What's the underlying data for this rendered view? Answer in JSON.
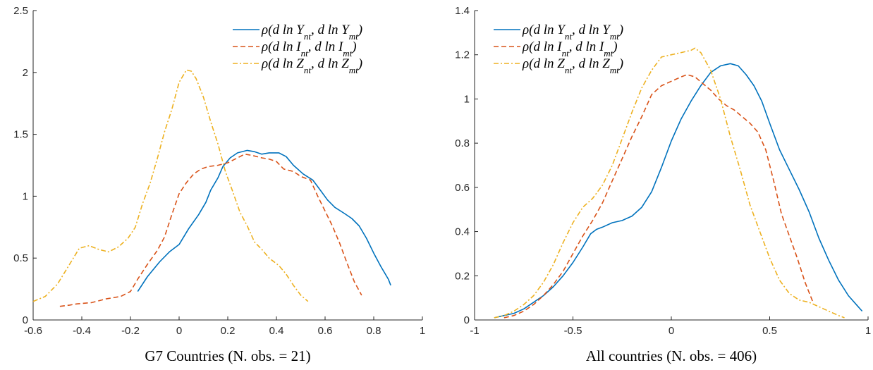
{
  "chart_data": [
    {
      "type": "line",
      "xlabel": "G7 Countries (N. obs. = 21)",
      "ylabel": "",
      "xlim": [
        -0.6,
        1
      ],
      "ylim": [
        0,
        2.5
      ],
      "xticks": [
        "-0.6",
        "-0.4",
        "-0.2",
        "0",
        "0.2",
        "0.4",
        "0.6",
        "0.8",
        "1"
      ],
      "yticks": [
        "0",
        "0.5",
        "1",
        "1.5",
        "2",
        "2.5"
      ],
      "legend_position": "top-right",
      "series": [
        {
          "name": "ρ(d ln Y_nt, d ln Y_mt)",
          "color": "#0072BD",
          "dash": "solid",
          "points": [
            [
              -0.17,
              0.23
            ],
            [
              -0.13,
              0.35
            ],
            [
              -0.08,
              0.47
            ],
            [
              -0.04,
              0.55
            ],
            [
              0.0,
              0.61
            ],
            [
              0.04,
              0.74
            ],
            [
              0.08,
              0.85
            ],
            [
              0.11,
              0.95
            ],
            [
              0.13,
              1.05
            ],
            [
              0.16,
              1.15
            ],
            [
              0.18,
              1.24
            ],
            [
              0.21,
              1.31
            ],
            [
              0.24,
              1.35
            ],
            [
              0.28,
              1.37
            ],
            [
              0.31,
              1.36
            ],
            [
              0.34,
              1.34
            ],
            [
              0.37,
              1.35
            ],
            [
              0.41,
              1.35
            ],
            [
              0.44,
              1.32
            ],
            [
              0.47,
              1.25
            ],
            [
              0.51,
              1.18
            ],
            [
              0.55,
              1.13
            ],
            [
              0.58,
              1.05
            ],
            [
              0.61,
              0.97
            ],
            [
              0.64,
              0.91
            ],
            [
              0.68,
              0.86
            ],
            [
              0.71,
              0.82
            ],
            [
              0.74,
              0.76
            ],
            [
              0.77,
              0.66
            ],
            [
              0.8,
              0.54
            ],
            [
              0.83,
              0.43
            ],
            [
              0.86,
              0.33
            ],
            [
              0.87,
              0.28
            ]
          ]
        },
        {
          "name": "ρ(d ln I_nt, d ln I_mt)",
          "color": "#D95319",
          "dash": "dashed",
          "points": [
            [
              -0.49,
              0.11
            ],
            [
              -0.45,
              0.12
            ],
            [
              -0.42,
              0.13
            ],
            [
              -0.36,
              0.14
            ],
            [
              -0.3,
              0.17
            ],
            [
              -0.24,
              0.19
            ],
            [
              -0.2,
              0.23
            ],
            [
              -0.17,
              0.33
            ],
            [
              -0.13,
              0.45
            ],
            [
              -0.09,
              0.56
            ],
            [
              -0.06,
              0.67
            ],
            [
              -0.03,
              0.85
            ],
            [
              0.0,
              1.02
            ],
            [
              0.03,
              1.11
            ],
            [
              0.06,
              1.18
            ],
            [
              0.09,
              1.22
            ],
            [
              0.12,
              1.24
            ],
            [
              0.16,
              1.25
            ],
            [
              0.2,
              1.27
            ],
            [
              0.24,
              1.31
            ],
            [
              0.27,
              1.34
            ],
            [
              0.3,
              1.33
            ],
            [
              0.34,
              1.31
            ],
            [
              0.37,
              1.3
            ],
            [
              0.4,
              1.28
            ],
            [
              0.43,
              1.22
            ],
            [
              0.47,
              1.2
            ],
            [
              0.5,
              1.16
            ],
            [
              0.54,
              1.13
            ],
            [
              0.57,
              1.0
            ],
            [
              0.6,
              0.88
            ],
            [
              0.63,
              0.76
            ],
            [
              0.66,
              0.62
            ],
            [
              0.69,
              0.46
            ],
            [
              0.72,
              0.31
            ],
            [
              0.75,
              0.2
            ]
          ]
        },
        {
          "name": "ρ(d ln Z_nt, d ln Z_mt)",
          "color": "#EDB120",
          "dash": "dashdot",
          "points": [
            [
              -0.6,
              0.15
            ],
            [
              -0.55,
              0.19
            ],
            [
              -0.5,
              0.29
            ],
            [
              -0.45,
              0.45
            ],
            [
              -0.41,
              0.58
            ],
            [
              -0.37,
              0.6
            ],
            [
              -0.33,
              0.57
            ],
            [
              -0.29,
              0.55
            ],
            [
              -0.25,
              0.59
            ],
            [
              -0.21,
              0.66
            ],
            [
              -0.18,
              0.75
            ],
            [
              -0.15,
              0.94
            ],
            [
              -0.12,
              1.1
            ],
            [
              -0.09,
              1.3
            ],
            [
              -0.06,
              1.52
            ],
            [
              -0.03,
              1.7
            ],
            [
              0.0,
              1.92
            ],
            [
              0.03,
              2.02
            ],
            [
              0.05,
              2.01
            ],
            [
              0.07,
              1.95
            ],
            [
              0.1,
              1.8
            ],
            [
              0.13,
              1.6
            ],
            [
              0.16,
              1.42
            ],
            [
              0.19,
              1.2
            ],
            [
              0.22,
              1.04
            ],
            [
              0.25,
              0.87
            ],
            [
              0.28,
              0.76
            ],
            [
              0.31,
              0.63
            ],
            [
              0.34,
              0.57
            ],
            [
              0.37,
              0.5
            ],
            [
              0.41,
              0.44
            ],
            [
              0.44,
              0.37
            ],
            [
              0.47,
              0.28
            ],
            [
              0.5,
              0.2
            ],
            [
              0.53,
              0.15
            ]
          ]
        }
      ]
    },
    {
      "type": "line",
      "xlabel": "All countries (N. obs. = 406)",
      "ylabel": "",
      "xlim": [
        -1,
        1
      ],
      "ylim": [
        0,
        1.4
      ],
      "xticks": [
        "-1",
        "-0.5",
        "0",
        "0.5",
        "1"
      ],
      "yticks": [
        "0",
        "0.2",
        "0.4",
        "0.6",
        "0.8",
        "1",
        "1.2",
        "1.4"
      ],
      "legend_position": "top-left",
      "series": [
        {
          "name": "ρ(d ln Y_nt, d ln Y_mt)",
          "color": "#0072BD",
          "dash": "solid",
          "points": [
            [
              -0.9,
              0.01
            ],
            [
              -0.85,
              0.02
            ],
            [
              -0.8,
              0.03
            ],
            [
              -0.75,
              0.05
            ],
            [
              -0.7,
              0.08
            ],
            [
              -0.65,
              0.11
            ],
            [
              -0.6,
              0.15
            ],
            [
              -0.55,
              0.2
            ],
            [
              -0.5,
              0.26
            ],
            [
              -0.45,
              0.33
            ],
            [
              -0.41,
              0.39
            ],
            [
              -0.38,
              0.41
            ],
            [
              -0.35,
              0.42
            ],
            [
              -0.3,
              0.44
            ],
            [
              -0.25,
              0.45
            ],
            [
              -0.2,
              0.47
            ],
            [
              -0.15,
              0.51
            ],
            [
              -0.1,
              0.58
            ],
            [
              -0.05,
              0.69
            ],
            [
              0.0,
              0.81
            ],
            [
              0.05,
              0.91
            ],
            [
              0.1,
              0.99
            ],
            [
              0.15,
              1.06
            ],
            [
              0.2,
              1.12
            ],
            [
              0.25,
              1.15
            ],
            [
              0.3,
              1.16
            ],
            [
              0.34,
              1.15
            ],
            [
              0.38,
              1.11
            ],
            [
              0.42,
              1.06
            ],
            [
              0.46,
              0.99
            ],
            [
              0.5,
              0.89
            ],
            [
              0.55,
              0.77
            ],
            [
              0.6,
              0.68
            ],
            [
              0.65,
              0.59
            ],
            [
              0.7,
              0.49
            ],
            [
              0.75,
              0.37
            ],
            [
              0.8,
              0.27
            ],
            [
              0.85,
              0.18
            ],
            [
              0.9,
              0.11
            ],
            [
              0.95,
              0.06
            ],
            [
              0.97,
              0.04
            ]
          ]
        },
        {
          "name": "ρ(d ln I_nt, d ln I_mt)",
          "color": "#D95319",
          "dash": "dashed",
          "points": [
            [
              -0.85,
              0.01
            ],
            [
              -0.8,
              0.02
            ],
            [
              -0.75,
              0.04
            ],
            [
              -0.7,
              0.07
            ],
            [
              -0.65,
              0.11
            ],
            [
              -0.6,
              0.16
            ],
            [
              -0.55,
              0.22
            ],
            [
              -0.5,
              0.3
            ],
            [
              -0.45,
              0.38
            ],
            [
              -0.4,
              0.45
            ],
            [
              -0.35,
              0.53
            ],
            [
              -0.3,
              0.63
            ],
            [
              -0.25,
              0.73
            ],
            [
              -0.2,
              0.83
            ],
            [
              -0.15,
              0.92
            ],
            [
              -0.1,
              1.02
            ],
            [
              -0.05,
              1.06
            ],
            [
              0.0,
              1.08
            ],
            [
              0.05,
              1.1
            ],
            [
              0.08,
              1.11
            ],
            [
              0.12,
              1.1
            ],
            [
              0.16,
              1.07
            ],
            [
              0.2,
              1.04
            ],
            [
              0.24,
              1.0
            ],
            [
              0.28,
              0.97
            ],
            [
              0.32,
              0.95
            ],
            [
              0.36,
              0.92
            ],
            [
              0.4,
              0.89
            ],
            [
              0.44,
              0.85
            ],
            [
              0.48,
              0.77
            ],
            [
              0.52,
              0.63
            ],
            [
              0.56,
              0.48
            ],
            [
              0.6,
              0.38
            ],
            [
              0.64,
              0.28
            ],
            [
              0.68,
              0.17
            ],
            [
              0.72,
              0.08
            ]
          ]
        },
        {
          "name": "ρ(d ln Z_nt, d ln Z_mt)",
          "color": "#EDB120",
          "dash": "dashdot",
          "points": [
            [
              -0.9,
              0.01
            ],
            [
              -0.85,
              0.02
            ],
            [
              -0.8,
              0.04
            ],
            [
              -0.75,
              0.07
            ],
            [
              -0.7,
              0.11
            ],
            [
              -0.65,
              0.17
            ],
            [
              -0.6,
              0.25
            ],
            [
              -0.55,
              0.35
            ],
            [
              -0.5,
              0.44
            ],
            [
              -0.45,
              0.51
            ],
            [
              -0.4,
              0.55
            ],
            [
              -0.35,
              0.61
            ],
            [
              -0.3,
              0.7
            ],
            [
              -0.25,
              0.82
            ],
            [
              -0.2,
              0.94
            ],
            [
              -0.15,
              1.05
            ],
            [
              -0.1,
              1.13
            ],
            [
              -0.05,
              1.19
            ],
            [
              0.0,
              1.2
            ],
            [
              0.05,
              1.21
            ],
            [
              0.1,
              1.22
            ],
            [
              0.12,
              1.23
            ],
            [
              0.15,
              1.21
            ],
            [
              0.2,
              1.13
            ],
            [
              0.25,
              1.0
            ],
            [
              0.3,
              0.83
            ],
            [
              0.35,
              0.68
            ],
            [
              0.4,
              0.52
            ],
            [
              0.45,
              0.4
            ],
            [
              0.5,
              0.28
            ],
            [
              0.55,
              0.18
            ],
            [
              0.6,
              0.12
            ],
            [
              0.65,
              0.09
            ],
            [
              0.7,
              0.08
            ],
            [
              0.75,
              0.06
            ],
            [
              0.8,
              0.04
            ],
            [
              0.85,
              0.02
            ],
            [
              0.88,
              0.01
            ]
          ]
        }
      ]
    }
  ]
}
